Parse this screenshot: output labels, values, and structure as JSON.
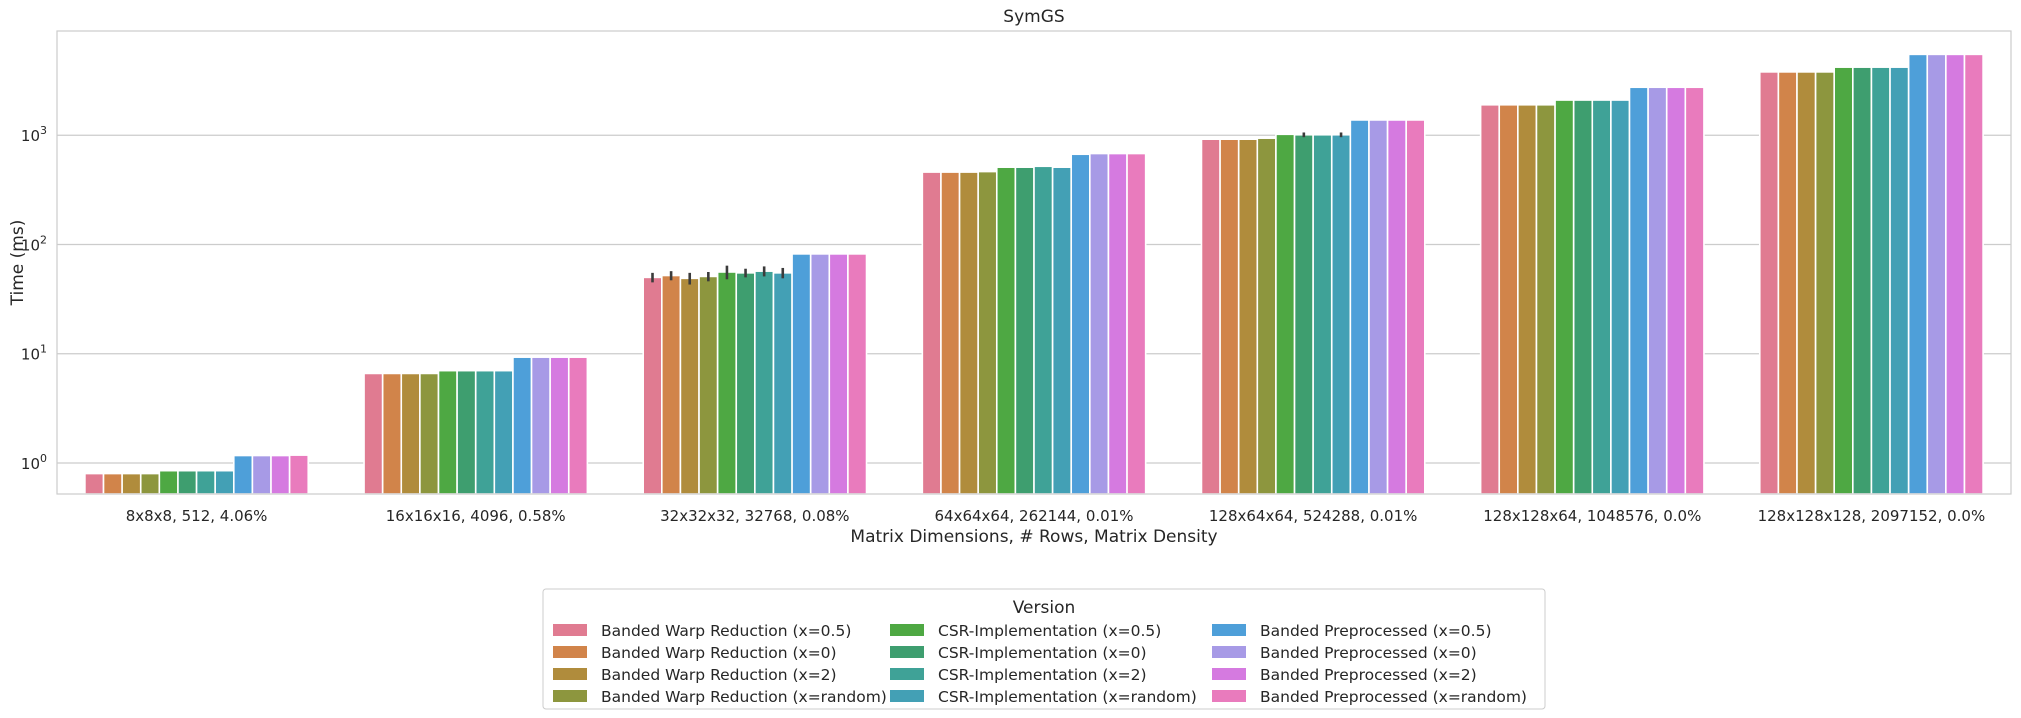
{
  "chart_data": {
    "type": "bar",
    "title": "SymGS",
    "xlabel": "Matrix Dimensions, # Rows, Matrix Density",
    "ylabel": "Time (ms)",
    "yscale": "log",
    "ylim": [
      0.52,
      9000
    ],
    "yticks": [
      {
        "value": 1,
        "base": "10",
        "exp": "0"
      },
      {
        "value": 10,
        "base": "10",
        "exp": "1"
      },
      {
        "value": 100,
        "base": "10",
        "exp": "2"
      },
      {
        "value": 1000,
        "base": "10",
        "exp": "3"
      }
    ],
    "grid": true,
    "legend_placement": "below",
    "legend_title": "Version",
    "categories": [
      "8x8x8, 512, 4.06%",
      "16x16x16, 4096, 0.58%",
      "32x32x32, 32768, 0.08%",
      "64x64x64, 262144, 0.01%",
      "128x64x64, 524288, 0.01%",
      "128x128x64, 1048576, 0.0%",
      "128x128x128, 2097152, 0.0%"
    ],
    "series": [
      {
        "name": "Banded Warp Reduction (x=0.5)",
        "color": "#e07b91",
        "values": [
          0.8,
          6.6,
          50,
          460,
          920,
          1900,
          3800
        ],
        "errors": [
          null,
          null,
          5,
          null,
          null,
          null,
          null
        ]
      },
      {
        "name": "Banded Warp Reduction (x=0)",
        "color": "#d1844a",
        "values": [
          0.8,
          6.6,
          52,
          460,
          920,
          1900,
          3800
        ],
        "errors": [
          null,
          null,
          5,
          null,
          null,
          null,
          null
        ]
      },
      {
        "name": "Banded Warp Reduction (x=2)",
        "color": "#b08c3c",
        "values": [
          0.8,
          6.6,
          49,
          460,
          920,
          1900,
          3800
        ],
        "errors": [
          null,
          null,
          6,
          null,
          null,
          null,
          null
        ]
      },
      {
        "name": "Banded Warp Reduction (x=random)",
        "color": "#8d963e",
        "values": [
          0.8,
          6.6,
          51,
          465,
          940,
          1900,
          3800
        ],
        "errors": [
          null,
          null,
          5,
          null,
          null,
          null,
          null
        ]
      },
      {
        "name": "CSR-Implementation (x=0.5)",
        "color": "#4ea843",
        "values": [
          0.85,
          7.0,
          56,
          510,
          1020,
          2100,
          4200
        ],
        "errors": [
          null,
          null,
          8,
          null,
          null,
          null,
          null
        ]
      },
      {
        "name": "CSR-Implementation (x=0)",
        "color": "#3e9e6f",
        "values": [
          0.85,
          7.0,
          55,
          510,
          1010,
          2100,
          4200
        ],
        "errors": [
          null,
          null,
          5,
          null,
          50,
          null,
          null
        ]
      },
      {
        "name": "CSR-Implementation (x=2)",
        "color": "#3fa297",
        "values": [
          0.85,
          7.0,
          57,
          520,
          1010,
          2100,
          4200
        ],
        "errors": [
          null,
          null,
          6,
          null,
          null,
          null,
          null
        ]
      },
      {
        "name": "CSR-Implementation (x=random)",
        "color": "#43a0b5",
        "values": [
          0.85,
          7.0,
          55,
          510,
          1010,
          2100,
          4200
        ],
        "errors": [
          null,
          null,
          6,
          null,
          50,
          null,
          null
        ]
      },
      {
        "name": "Banded Preprocessed (x=0.5)",
        "color": "#4e9fd9",
        "values": [
          1.17,
          9.3,
          82,
          670,
          1380,
          2750,
          5500
        ],
        "errors": [
          null,
          null,
          null,
          null,
          null,
          null,
          null
        ]
      },
      {
        "name": "Banded Preprocessed (x=0)",
        "color": "#a79ae6",
        "values": [
          1.17,
          9.3,
          82,
          680,
          1380,
          2750,
          5500
        ],
        "errors": [
          null,
          null,
          null,
          null,
          null,
          null,
          null
        ]
      },
      {
        "name": "Banded Preprocessed (x=2)",
        "color": "#d57ae0",
        "values": [
          1.17,
          9.3,
          82,
          680,
          1380,
          2750,
          5500
        ],
        "errors": [
          null,
          null,
          null,
          null,
          null,
          null,
          null
        ]
      },
      {
        "name": "Banded Preprocessed (x=random)",
        "color": "#e97bbd",
        "values": [
          1.18,
          9.3,
          82,
          680,
          1380,
          2750,
          5500
        ],
        "errors": [
          null,
          null,
          null,
          null,
          null,
          null,
          null
        ]
      }
    ]
  }
}
